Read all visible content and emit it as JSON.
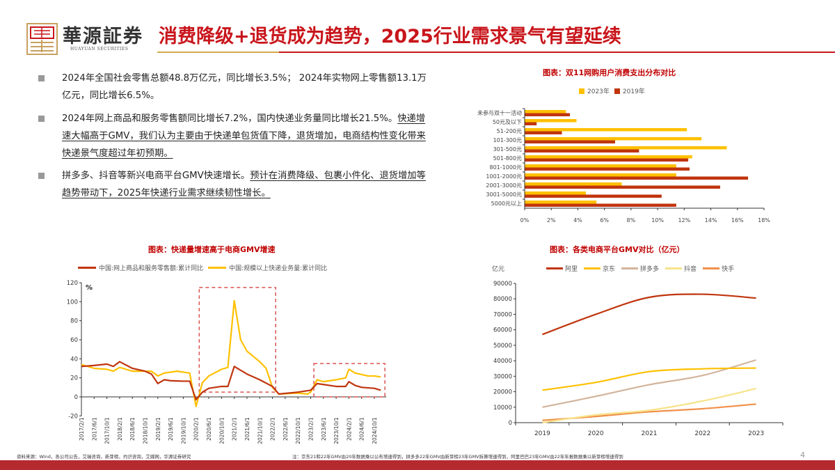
{
  "header": {
    "brand_cn": "華源証券",
    "brand_en": "HUAYUAN SECURITIES",
    "title": "消费降级+退货成为趋势，2025行业需求景气有望延续"
  },
  "bullets": [
    {
      "plain": "2024年全国社会零售总额48.8万亿元，同比增长3.5%； 2024年实物网上零售额13.1万亿元，同比增长6.5%。",
      "underlined": ""
    },
    {
      "plain": "2024年网上商品和服务零售额同比增长7.2%，国内快递业务量同比增长21.5%。",
      "underlined": "快递增速大幅高于GMV，我们认为主要由于快递单包货值下降，退货增加，电商结构性变化带来快递景气度超过年初预期。"
    },
    {
      "plain": "拼多多、抖音等新兴电商平台GMV快速增长。",
      "underlined": "预计在消费降级、包裹小件化、退货增加等趋势带动下，2025年快递行业需求继续韧性增长。"
    }
  ],
  "colors": {
    "brand_red": "#C8151B",
    "gold": "#D4A84A",
    "yellow": "#FFC000",
    "red": "#C0350E"
  },
  "chart_data": [
    {
      "type": "bar",
      "orientation": "horizontal",
      "title": "图表：双11网购用户消费支出分布对比",
      "legend_position": "top",
      "categories": [
        "未参与双十一活动",
        "50元及以下",
        "51-200元",
        "101-300元",
        "301-500元",
        "501-800元",
        "801-1000元",
        "1001-2000元",
        "2001-3000元",
        "3001-5000元",
        "5000元以上"
      ],
      "series": [
        {
          "name": "2023年",
          "color": "#FFC000",
          "values": [
            3.1,
            3.9,
            12.2,
            13.3,
            15.2,
            12.6,
            11.4,
            11.4,
            7.3,
            4.6,
            5.4
          ]
        },
        {
          "name": "2019年",
          "color": "#C0350E",
          "values": [
            3.4,
            0.9,
            2.8,
            6.8,
            8.6,
            12.3,
            12.4,
            16.8,
            14.7,
            10.3,
            11.4
          ]
        }
      ],
      "xlim": [
        0,
        18
      ],
      "xticks": [
        "0%",
        "2%",
        "4%",
        "6%",
        "8%",
        "10%",
        "12%",
        "14%",
        "16%",
        "18%"
      ]
    },
    {
      "type": "line",
      "title": "图表：快递量增速高于电商GMV增速",
      "ylabel": "%",
      "ylim": [
        -20,
        120
      ],
      "yticks": [
        "-20",
        "0",
        "20",
        "40",
        "60",
        "80",
        "100",
        "120"
      ],
      "xticks": [
        "2017/2/1",
        "2017/6/1",
        "2017/10/1",
        "2018/2/1",
        "2018/6/1",
        "2018/10/1",
        "2019/2/1",
        "2019/6/1",
        "2019/10/1",
        "2020/2/1",
        "2020/6/1",
        "2020/10/1",
        "2021/2/1",
        "2021/6/1",
        "2021/10/1",
        "2022/2/1",
        "2022/6/1",
        "2022/10/1",
        "2023/2/1",
        "2023/6/1",
        "2023/10/1",
        "2024/2/1",
        "2024/6/1",
        "2024/10/1"
      ],
      "series": [
        {
          "name": "中国:网上商品和服务零售额:累计同比",
          "color": "#C0350E",
          "points": [
            [
              "2017/2",
              32
            ],
            [
              "2017/6",
              33
            ],
            [
              "2017/10",
              34.5
            ],
            [
              "2017/12",
              32
            ],
            [
              "2018/2",
              37
            ],
            [
              "2018/6",
              30
            ],
            [
              "2018/10",
              27
            ],
            [
              "2018/12",
              24
            ],
            [
              "2019/2",
              14
            ],
            [
              "2019/4",
              18
            ],
            [
              "2019/6",
              17
            ],
            [
              "2019/10",
              16.5
            ],
            [
              "2019/12",
              16.5
            ],
            [
              "2020/2",
              -3
            ],
            [
              "2020/4",
              5
            ],
            [
              "2020/6",
              9
            ],
            [
              "2020/10",
              11
            ],
            [
              "2020/12",
              11
            ],
            [
              "2021/2",
              32
            ],
            [
              "2021/6",
              24
            ],
            [
              "2021/10",
              18
            ],
            [
              "2022/2",
              11
            ],
            [
              "2022/4",
              3
            ],
            [
              "2022/10",
              5
            ],
            [
              "2023/2",
              7
            ],
            [
              "2023/4",
              14
            ],
            [
              "2023/10",
              11
            ],
            [
              "2024/1",
              11
            ],
            [
              "2024/2",
              16
            ],
            [
              "2024/4",
              12
            ],
            [
              "2024/6",
              10
            ],
            [
              "2024/10",
              9
            ],
            [
              "2024/12",
              7
            ]
          ]
        },
        {
          "name": "中国:规模以上快递业务量:累计同比",
          "color": "#FFC000",
          "points": [
            [
              "2017/2",
              34
            ],
            [
              "2017/6",
              30
            ],
            [
              "2017/10",
              29
            ],
            [
              "2017/12",
              27
            ],
            [
              "2018/2",
              31
            ],
            [
              "2018/6",
              27
            ],
            [
              "2018/10",
              27
            ],
            [
              "2018/12",
              27
            ],
            [
              "2019/2",
              22
            ],
            [
              "2019/4",
              25
            ],
            [
              "2019/8",
              27
            ],
            [
              "2019/12",
              25
            ],
            [
              "2020/2",
              -10
            ],
            [
              "2020/4",
              15
            ],
            [
              "2020/6",
              22
            ],
            [
              "2020/10",
              29
            ],
            [
              "2020/12",
              31
            ],
            [
              "2021/2",
              101
            ],
            [
              "2021/4",
              60
            ],
            [
              "2021/6",
              48
            ],
            [
              "2021/10",
              37
            ],
            [
              "2021/12",
              30
            ],
            [
              "2022/2",
              10
            ],
            [
              "2022/4",
              3
            ],
            [
              "2022/10",
              4
            ],
            [
              "2023/1",
              3
            ],
            [
              "2023/2",
              5
            ],
            [
              "2023/4",
              18
            ],
            [
              "2023/6",
              16
            ],
            [
              "2023/10",
              18
            ],
            [
              "2024/1",
              20
            ],
            [
              "2024/2",
              29
            ],
            [
              "2024/4",
              25
            ],
            [
              "2024/8",
              22
            ],
            [
              "2024/10",
              22
            ],
            [
              "2024/12",
              21
            ]
          ]
        }
      ]
    },
    {
      "type": "line",
      "title": "图表：各类电商平台GMV对比（亿元）",
      "ylabel": "亿元",
      "ylim": [
        0,
        90000
      ],
      "yticks": [
        "0",
        "10000",
        "20000",
        "30000",
        "40000",
        "50000",
        "60000",
        "70000",
        "80000",
        "90000"
      ],
      "categories": [
        "2019",
        "2020",
        "2021",
        "2022",
        "2023"
      ],
      "series": [
        {
          "name": "阿里",
          "color": "#C0350E",
          "values": [
            57000,
            70000,
            81000,
            83000,
            80500
          ]
        },
        {
          "name": "京东",
          "color": "#FFC000",
          "values": [
            21000,
            26000,
            33000,
            34800,
            35300
          ]
        },
        {
          "name": "拼多多",
          "color": "#D2B49C",
          "values": [
            10000,
            17000,
            24500,
            30500,
            40500
          ]
        },
        {
          "name": "抖音",
          "color": "#F7E38A",
          "values": [
            0,
            5000,
            8000,
            14000,
            22000
          ]
        },
        {
          "name": "快手",
          "color": "#F0904A",
          "values": [
            1500,
            4000,
            7000,
            9000,
            12000
          ]
        }
      ]
    }
  ],
  "footer": {
    "source": "资料来源：Wind，各公司公告，艾瑞咨询，新芽榜，灼识咨询，艾媒网，华源证券研究",
    "note": "注：京东21和22年GMV由20年数据乘以公布增速得到，拼多多22年GMV由新芽榜23年GMV拆算增速得到，阿里巴巴23年GMV由22年年报数据乘以新芽榜增速得到",
    "page": "4"
  }
}
